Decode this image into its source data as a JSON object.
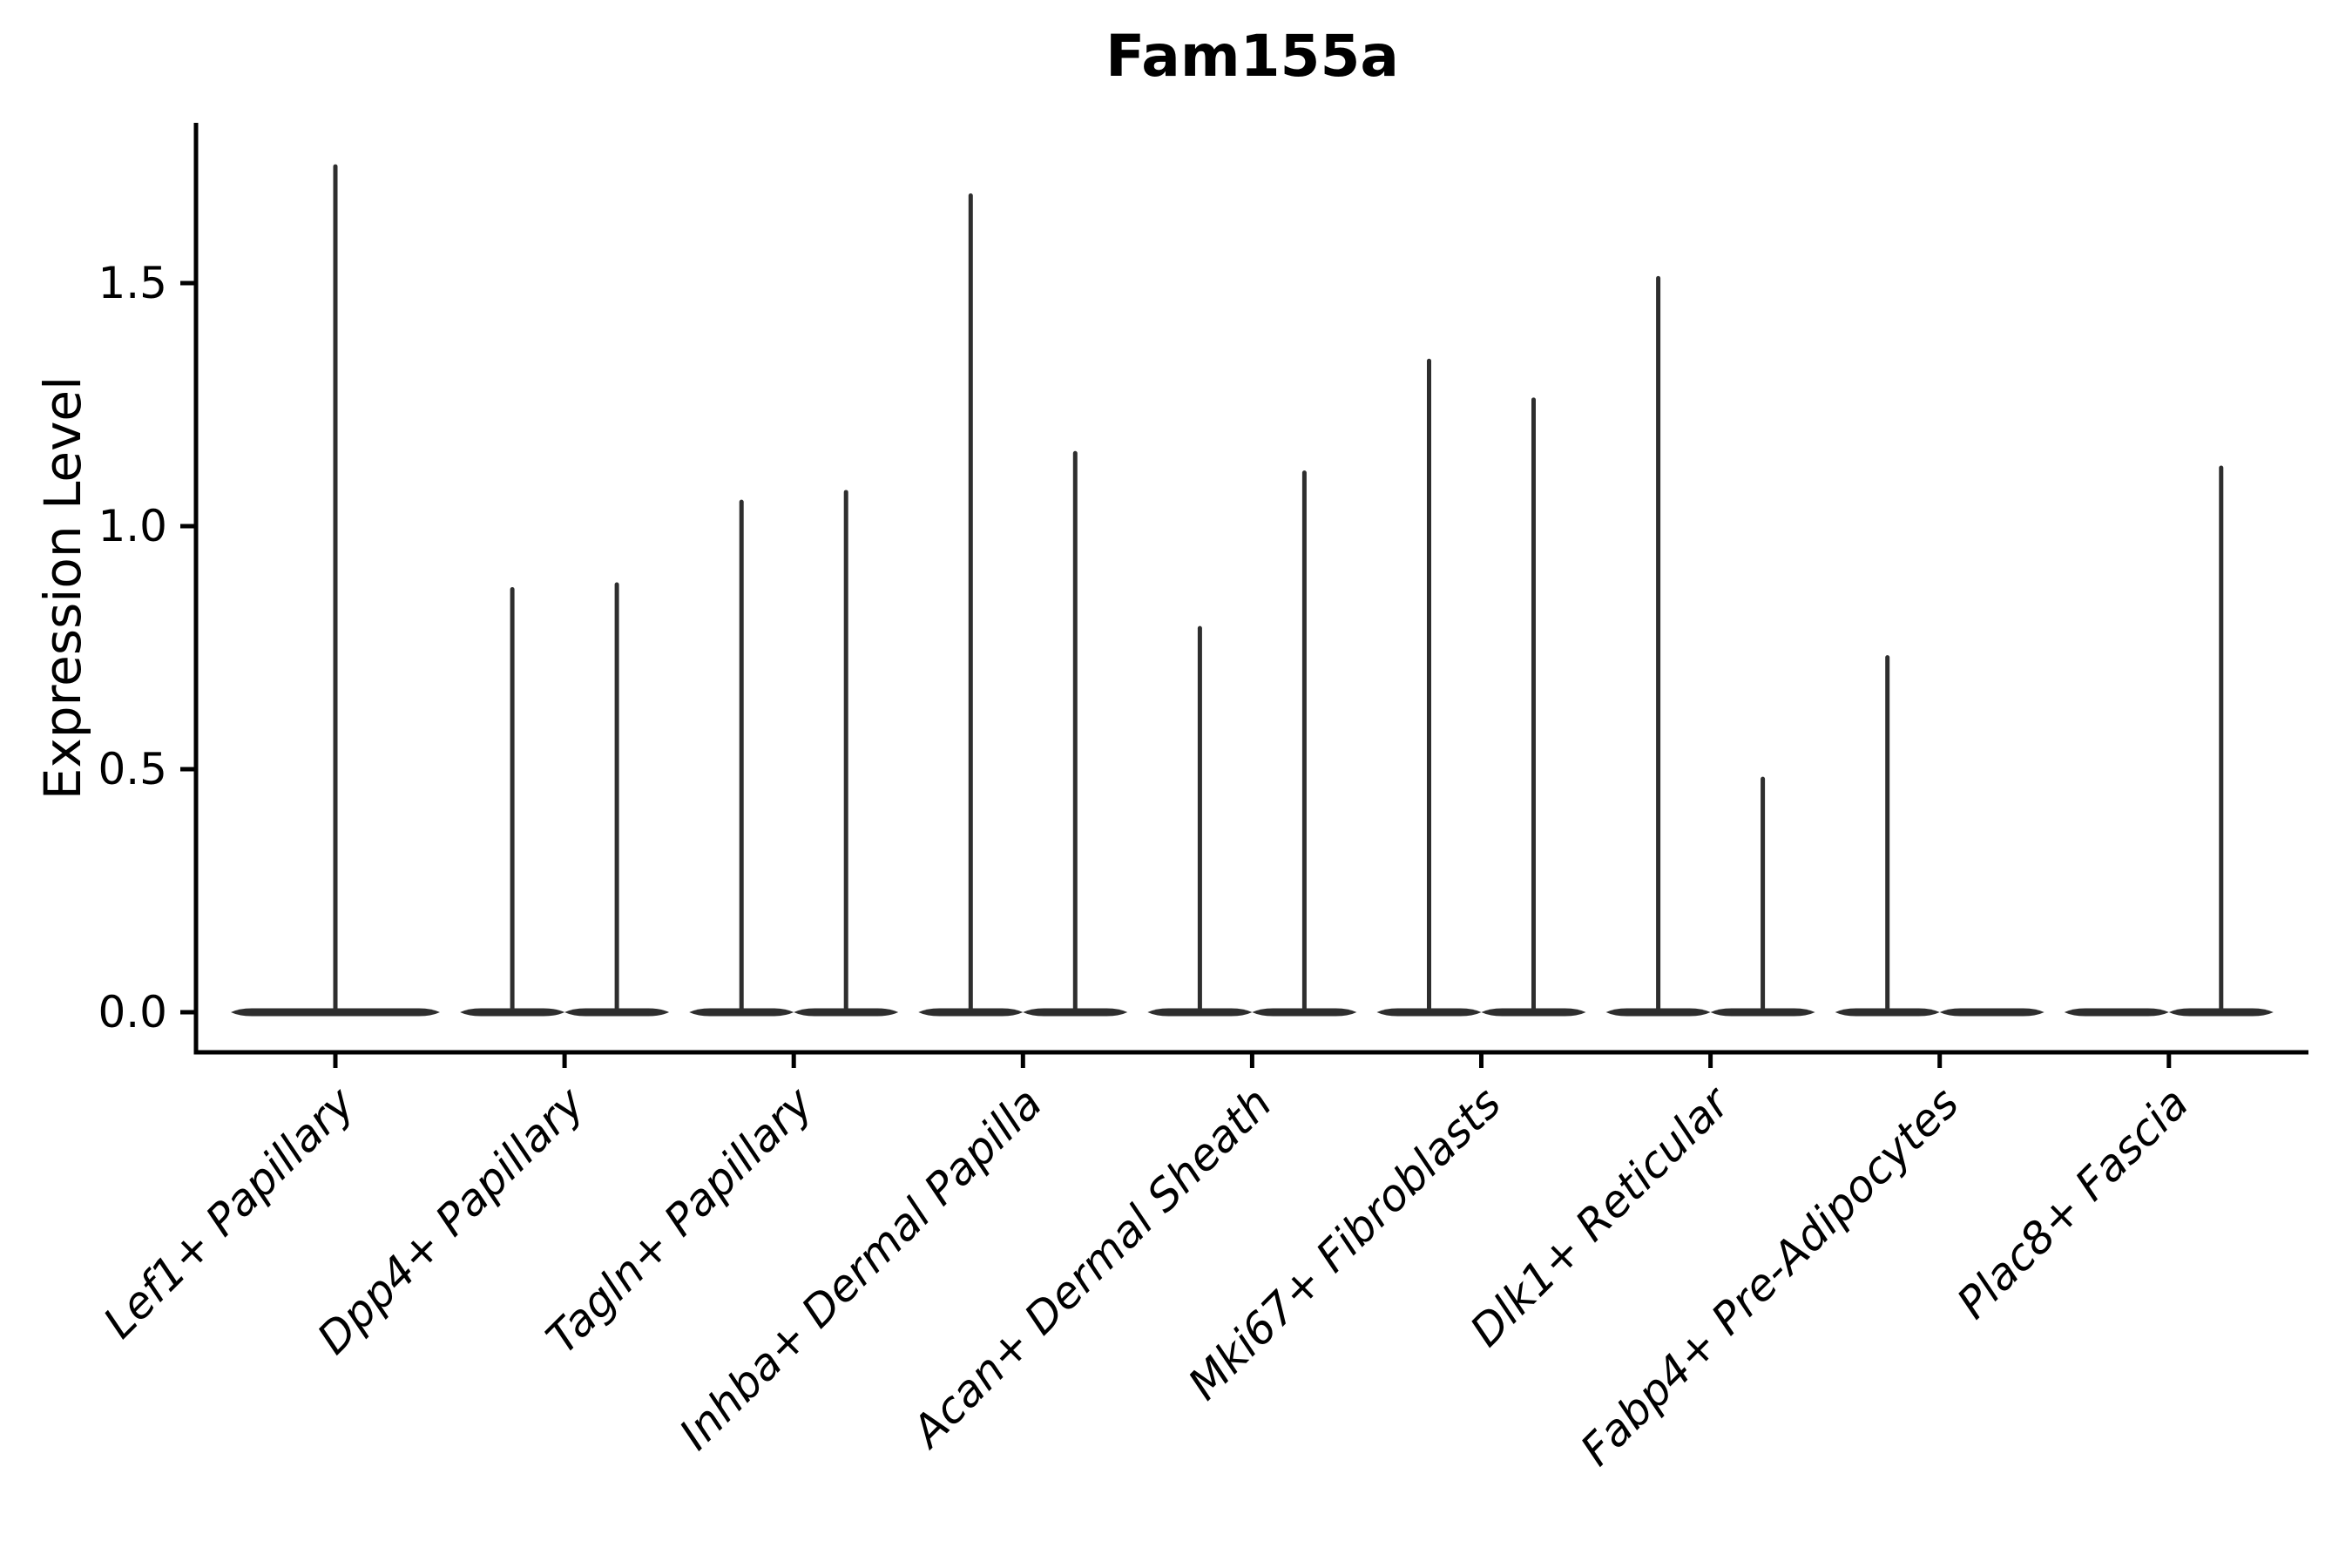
{
  "figure": {
    "background": "#ffffff"
  },
  "chart_data": {
    "type": "violin",
    "title": "Fam155a",
    "ylabel": "Expression Level",
    "xlabel": "",
    "ylim": [
      -0.08,
      1.83
    ],
    "yticks": [
      0,
      0.5,
      1,
      1.5
    ],
    "ytick_labels": [
      "0.0",
      "0.5",
      "1.0",
      "1.5"
    ],
    "grid": false,
    "legend": "none",
    "categories": [
      "Lef1+ Papillary",
      "Dpp4+ Papillary",
      "Tagln+ Papillary",
      "Inhba+ Dermal Papilla",
      "Acan+ Dermal Sheath",
      "Mki67+ Fibroblasts",
      "Dlk1+ Reticular",
      "Fabp4+ Pre-Adipocytes",
      "Plac8+ Fascia"
    ],
    "violins": [
      {
        "category_index": 0,
        "position": "full",
        "max": 1.74
      },
      {
        "category_index": 1,
        "position": "left",
        "max": 0.87
      },
      {
        "category_index": 1,
        "position": "right",
        "max": 0.88
      },
      {
        "category_index": 2,
        "position": "left",
        "max": 1.05
      },
      {
        "category_index": 2,
        "position": "right",
        "max": 1.07
      },
      {
        "category_index": 3,
        "position": "left",
        "max": 1.68
      },
      {
        "category_index": 3,
        "position": "right",
        "max": 1.15
      },
      {
        "category_index": 4,
        "position": "left",
        "max": 0.79
      },
      {
        "category_index": 4,
        "position": "right",
        "max": 1.11
      },
      {
        "category_index": 5,
        "position": "left",
        "max": 1.34
      },
      {
        "category_index": 5,
        "position": "right",
        "max": 1.26
      },
      {
        "category_index": 6,
        "position": "left",
        "max": 1.51
      },
      {
        "category_index": 6,
        "position": "right",
        "max": 0.48
      },
      {
        "category_index": 7,
        "position": "left",
        "max": 0.73
      },
      {
        "category_index": 7,
        "position": "right",
        "max": 0.0
      },
      {
        "category_index": 8,
        "position": "left",
        "max": 0.0
      },
      {
        "category_index": 8,
        "position": "right",
        "max": 1.12
      }
    ],
    "style": {
      "violin_color": "#2e2e2e",
      "axis_color": "#000000",
      "text_color": "#000000",
      "shape_note": "each violin is a flat density pancake at 0 with a thin vertical tail rising to its max expression"
    }
  }
}
